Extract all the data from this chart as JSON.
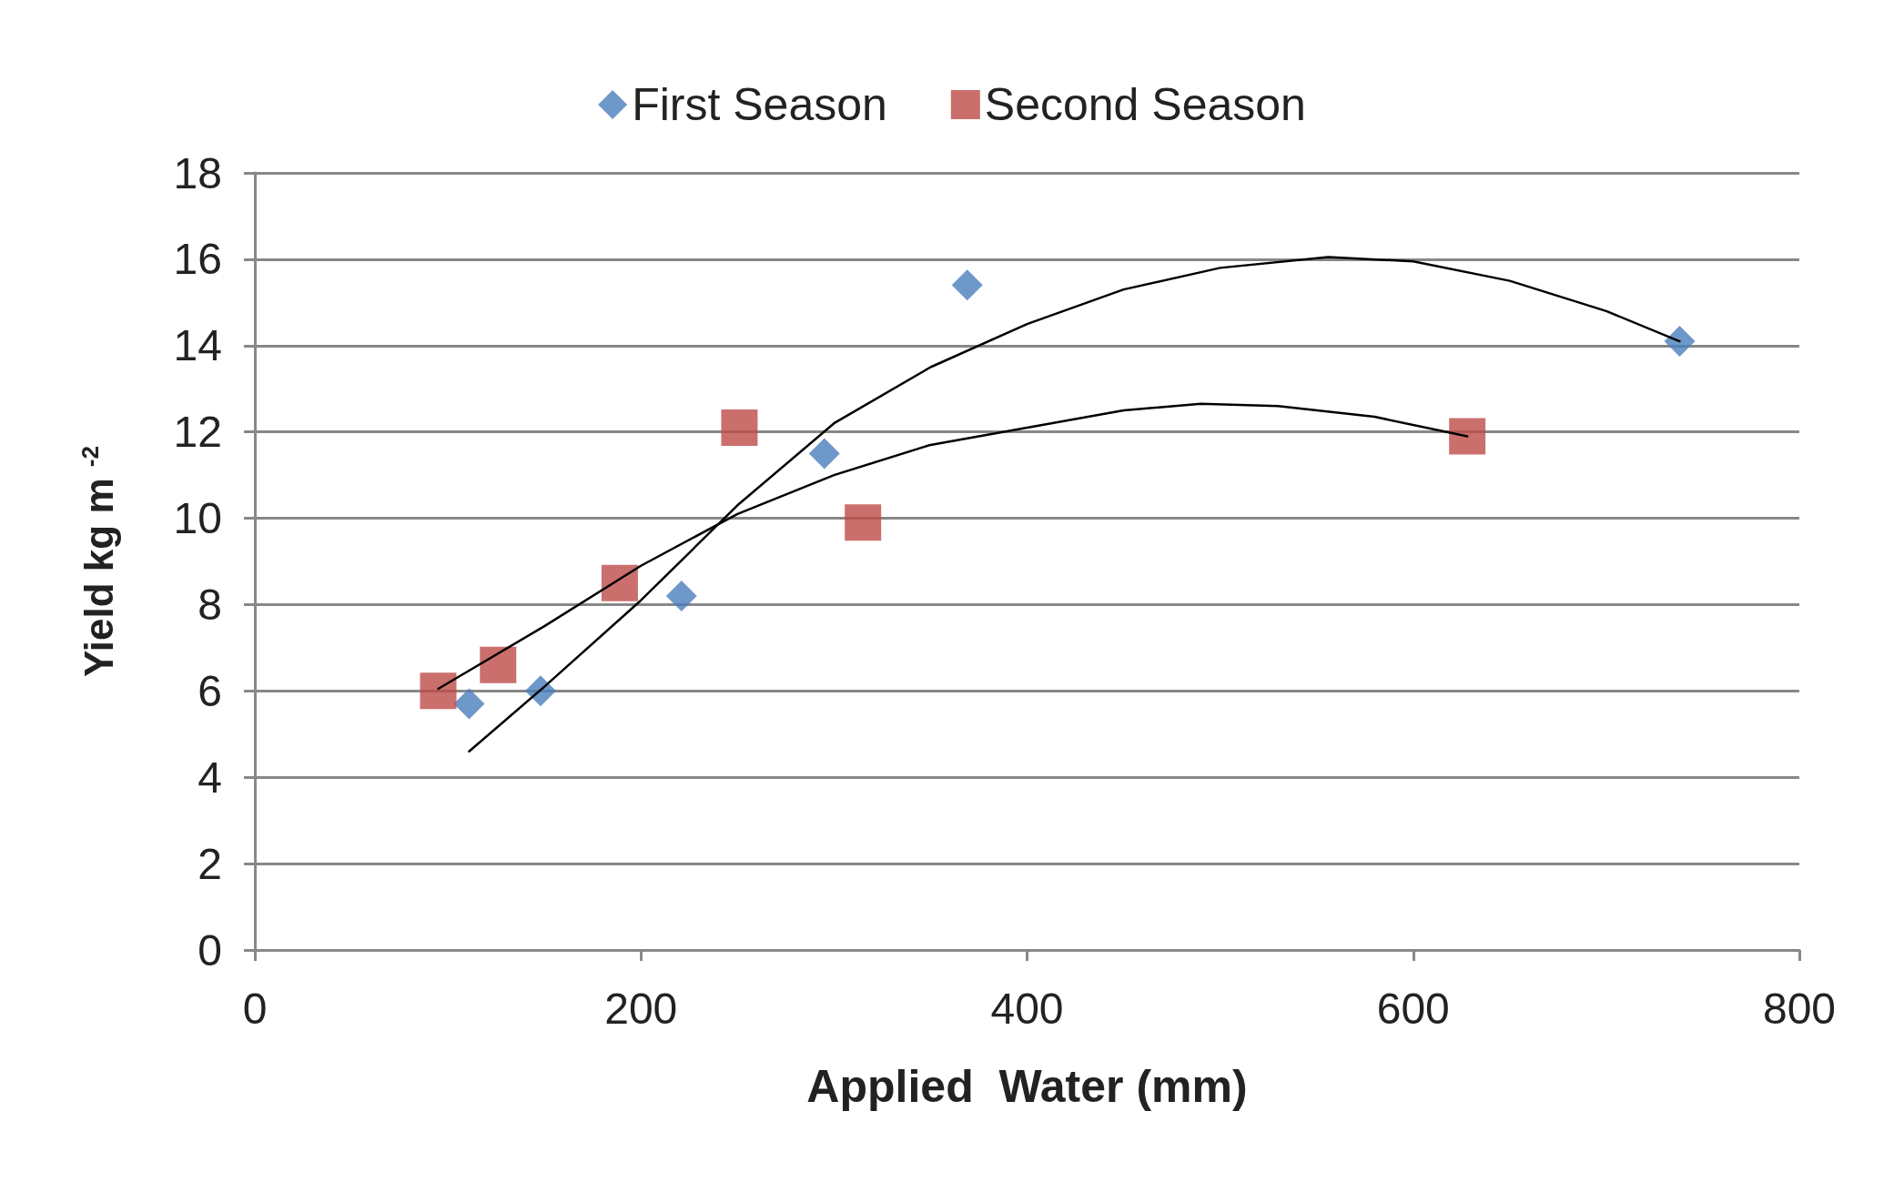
{
  "chart_data": {
    "type": "scatter",
    "xlabel": "Applied  Water (mm)",
    "ylabel": "Yield kg m $^{-2}$",
    "xlim": [
      0,
      800
    ],
    "xticks": [
      0,
      200,
      400,
      600,
      800
    ],
    "ylim": [
      0,
      18
    ],
    "yticks": [
      0,
      2,
      4,
      6,
      8,
      10,
      12,
      14,
      16,
      18
    ],
    "grid": "y",
    "legend": "top",
    "series": [
      {
        "name": "First Season",
        "color": "#4a7ebb",
        "marker": "diamond",
        "x": [
          111,
          148,
          221,
          295,
          369,
          738
        ],
        "values": [
          5.7,
          6.0,
          8.2,
          11.5,
          15.4,
          14.1
        ]
      },
      {
        "name": "Second Season",
        "color": "#be4b48",
        "marker": "square",
        "x": [
          95,
          126,
          189,
          251,
          315,
          628
        ],
        "values": [
          6.0,
          6.6,
          8.5,
          12.1,
          9.9,
          11.9
        ]
      },
      {
        "type": "line",
        "color": "#000000",
        "marker": "none",
        "x": [
          111,
          150,
          200,
          250,
          300,
          350,
          400,
          450,
          500,
          556,
          600,
          650,
          700,
          738
        ],
        "values": [
          4.6,
          6.1,
          8.1,
          10.3,
          12.2,
          13.5,
          14.5,
          15.3,
          15.8,
          16.05,
          15.95,
          15.5,
          14.8,
          14.1
        ]
      },
      {
        "type": "line",
        "color": "#000000",
        "marker": "none",
        "x": [
          95,
          150,
          200,
          250,
          300,
          350,
          400,
          450,
          490,
          530,
          580,
          628
        ],
        "values": [
          6.05,
          7.5,
          8.9,
          10.1,
          11.0,
          11.7,
          12.1,
          12.5,
          12.65,
          12.6,
          12.35,
          11.9
        ]
      }
    ]
  }
}
